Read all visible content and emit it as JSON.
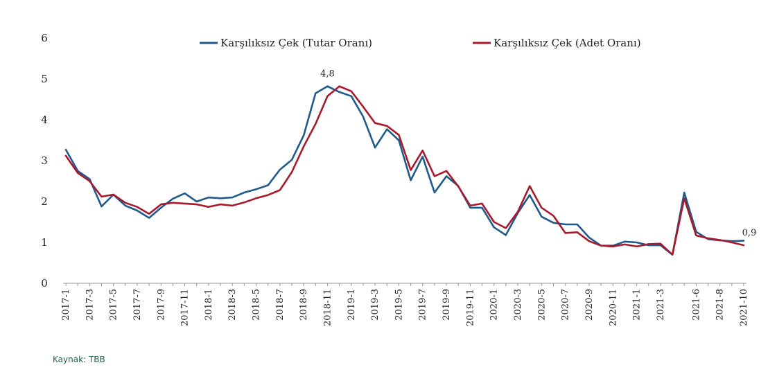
{
  "source": "Kaynak: TBB",
  "chart_data": {
    "type": "line",
    "title": "",
    "xlabel": "",
    "ylabel": "",
    "ylim": [
      0,
      6
    ],
    "yticks": [
      "0",
      "1",
      "2",
      "3",
      "4",
      "5",
      "6"
    ],
    "grid": false,
    "legend_position": "top",
    "x": [
      "2017-1",
      "2017-2",
      "2017-3",
      "2017-4",
      "2017-5",
      "2017-6",
      "2017-7",
      "2017-8",
      "2017-9",
      "2017-10",
      "2017-11",
      "2017-12",
      "2018-1",
      "2018-2",
      "2018-3",
      "2018-4",
      "2018-5",
      "2018-6",
      "2018-7",
      "2018-8",
      "2018-9",
      "2018-10",
      "2018-11",
      "2018-12",
      "2019-1",
      "2019-2",
      "2019-3",
      "2019-4",
      "2019-5",
      "2019-6",
      "2019-7",
      "2019-8",
      "2019-9",
      "2019-10",
      "2019-11",
      "2019-12",
      "2020-1",
      "2020-2",
      "2020-3",
      "2020-4",
      "2020-5",
      "2020-6",
      "2020-7",
      "2020-8",
      "2020-9",
      "2020-10",
      "2020-11",
      "2020-12",
      "2021-1",
      "2021-2",
      "2021-3",
      "2021-4",
      "2021-5",
      "2021-6",
      "2021-7",
      "2021-8",
      "2021-9",
      "2021-10"
    ],
    "x_tick_labels": [
      "2017-1",
      "2017-3",
      "2017-5",
      "2017-7",
      "2017-9",
      "2017-11",
      "2018-1",
      "2018-3",
      "2018-5",
      "2018-7",
      "2018-9",
      "2018-11",
      "2019-1",
      "2019-3",
      "2019-5",
      "2019-7",
      "2019-9",
      "2019-11",
      "2020-1",
      "2020-3",
      "2020-5",
      "2020-7",
      "2020-9",
      "2020-11",
      "2021-1",
      "2021-3",
      "2021-6",
      "2021-8",
      "2021-10"
    ],
    "series": [
      {
        "name": "Karşılıksız Çek (Tutar Oranı)",
        "color": "#1f5a8c",
        "values": [
          3.27,
          2.75,
          2.55,
          1.88,
          2.17,
          1.9,
          1.78,
          1.6,
          1.85,
          2.07,
          2.2,
          2.0,
          2.1,
          2.08,
          2.1,
          2.22,
          2.3,
          2.4,
          2.78,
          3.02,
          3.62,
          4.65,
          4.82,
          4.68,
          4.58,
          4.08,
          3.32,
          3.77,
          3.5,
          2.52,
          3.1,
          2.22,
          2.62,
          2.38,
          1.85,
          1.85,
          1.37,
          1.18,
          1.72,
          2.16,
          1.63,
          1.48,
          1.44,
          1.44,
          1.12,
          0.92,
          0.92,
          1.02,
          1.0,
          0.93,
          0.93,
          0.7,
          2.22,
          1.26,
          1.08,
          1.05,
          1.03,
          1.04
        ]
      },
      {
        "name": "Karşılıksız Çek (Adet Oranı)",
        "color": "#a8192b",
        "values": [
          3.12,
          2.7,
          2.5,
          2.12,
          2.17,
          1.97,
          1.87,
          1.7,
          1.93,
          1.97,
          1.95,
          1.93,
          1.87,
          1.93,
          1.9,
          1.98,
          2.08,
          2.16,
          2.28,
          2.72,
          3.35,
          3.9,
          4.58,
          4.82,
          4.7,
          4.32,
          3.92,
          3.85,
          3.63,
          2.77,
          3.25,
          2.62,
          2.75,
          2.37,
          1.9,
          1.95,
          1.5,
          1.35,
          1.75,
          2.38,
          1.85,
          1.65,
          1.23,
          1.25,
          1.03,
          0.92,
          0.9,
          0.95,
          0.9,
          0.96,
          0.97,
          0.7,
          2.08,
          1.17,
          1.1,
          1.06,
          1.0,
          0.93
        ]
      }
    ],
    "annotations": [
      {
        "text": "4,8",
        "x": "2018-11",
        "y": 4.82
      },
      {
        "text": "0,9",
        "x": "2021-10",
        "y": 0.93
      }
    ]
  }
}
